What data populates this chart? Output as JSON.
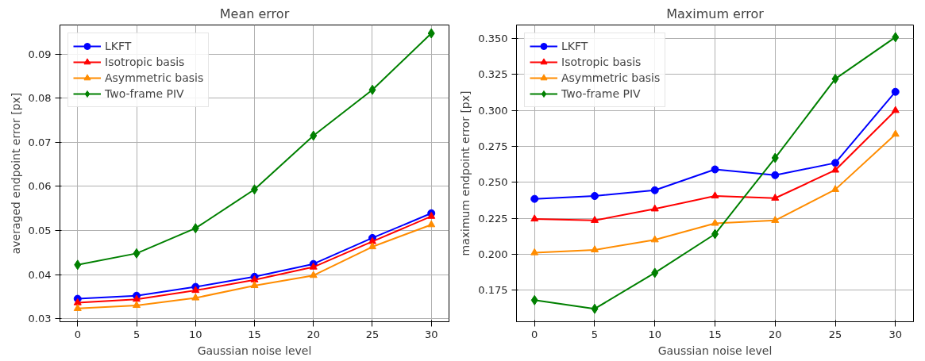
{
  "chart_data": [
    {
      "type": "line",
      "title": "Mean error",
      "xlabel": "Gaussian noise level",
      "ylabel": "averaged endpoint error [px]",
      "x": [
        0,
        5,
        10,
        15,
        20,
        25,
        30
      ],
      "xlim": [
        -1.5,
        31.5
      ],
      "xticks": [
        0,
        5,
        10,
        15,
        20,
        25,
        30
      ],
      "ylim": [
        0.0293,
        0.0966
      ],
      "yticks": [
        0.03,
        0.04,
        0.05,
        0.06,
        0.07,
        0.08,
        0.09
      ],
      "grid": true,
      "legend": "top left",
      "series": [
        {
          "name": "LKFT",
          "color": "#0000ff",
          "marker": "circle",
          "values": [
            0.0345,
            0.0352,
            0.0372,
            0.0395,
            0.0424,
            0.0483,
            0.0539
          ]
        },
        {
          "name": "Isotropic basis",
          "color": "#ff0000",
          "marker": "triangle",
          "values": [
            0.0336,
            0.0344,
            0.0364,
            0.0388,
            0.0417,
            0.0475,
            0.0532
          ]
        },
        {
          "name": "Asymmetric basis",
          "color": "#ff8c00",
          "marker": "triangle",
          "values": [
            0.0323,
            0.033,
            0.0347,
            0.0375,
            0.0398,
            0.0463,
            0.0513
          ]
        },
        {
          "name": "Two-frame PIV",
          "color": "#008000",
          "marker": "diamond",
          "values": [
            0.0422,
            0.0448,
            0.0505,
            0.0593,
            0.0715,
            0.0819,
            0.0947
          ]
        }
      ]
    },
    {
      "type": "line",
      "title": "Maximum error",
      "xlabel": "Gaussian noise level",
      "ylabel": "maximum endpoint error [px]",
      "x": [
        0,
        5,
        10,
        15,
        20,
        25,
        30
      ],
      "xlim": [
        -1.5,
        31.5
      ],
      "xticks": [
        0,
        5,
        10,
        15,
        20,
        25,
        30
      ],
      "ylim": [
        0.153,
        0.3595
      ],
      "yticks": [
        {
          "value": 0.175,
          "label": "0.175"
        },
        {
          "value": 0.2,
          "label": "0.200"
        },
        {
          "value": 0.225,
          "label": "0.225"
        },
        {
          "value": 0.25,
          "label": "0.250"
        },
        {
          "value": 0.275,
          "label": "0.275"
        },
        {
          "value": 0.3,
          "label": "0.300"
        },
        {
          "value": 0.325,
          "label": "0.325"
        },
        {
          "value": 0.35,
          "label": "0.350"
        }
      ],
      "grid": true,
      "legend": "top left",
      "series": [
        {
          "name": "LKFT",
          "color": "#0000ff",
          "marker": "circle",
          "values": [
            0.2385,
            0.2405,
            0.2445,
            0.259,
            0.255,
            0.2635,
            0.313
          ]
        },
        {
          "name": "Isotropic basis",
          "color": "#ff0000",
          "marker": "triangle",
          "values": [
            0.2245,
            0.2235,
            0.2315,
            0.2405,
            0.239,
            0.2585,
            0.3
          ]
        },
        {
          "name": "Asymmetric basis",
          "color": "#ff8c00",
          "marker": "triangle",
          "values": [
            0.201,
            0.203,
            0.21,
            0.2215,
            0.2235,
            0.245,
            0.2835
          ]
        },
        {
          "name": "Two-frame PIV",
          "color": "#008000",
          "marker": "diamond",
          "values": [
            0.168,
            0.162,
            0.187,
            0.214,
            0.267,
            0.322,
            0.351
          ]
        }
      ]
    }
  ]
}
